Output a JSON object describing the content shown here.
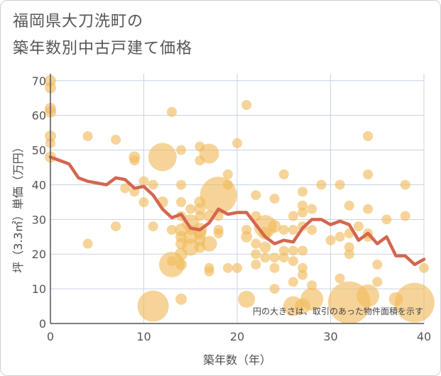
{
  "chart_data": {
    "type": "scatter",
    "title_line1": "福岡県大刀洗町の",
    "title_line2": "築年数別中古戸建て価格",
    "xlabel": "築年数（年）",
    "ylabel": "坪（3.3㎡）単価（万円）",
    "xlim": [
      0,
      40
    ],
    "ylim": [
      0,
      72
    ],
    "xticks": [
      0,
      10,
      20,
      30,
      40
    ],
    "yticks": [
      0,
      10,
      20,
      30,
      40,
      50,
      60,
      70
    ],
    "note": "円の大きさは、取引のあった物件面積を示す",
    "colors": {
      "bubble": "#f0b95a",
      "line": "#d4664f",
      "grid": "#c9d3e3",
      "axis": "#555555"
    },
    "points": [
      [
        0,
        70,
        8
      ],
      [
        0,
        68,
        8
      ],
      [
        0,
        62,
        8
      ],
      [
        0,
        61,
        8
      ],
      [
        0,
        54,
        8
      ],
      [
        0,
        52,
        7
      ],
      [
        0,
        48,
        8
      ],
      [
        4,
        54,
        7
      ],
      [
        4,
        23,
        7
      ],
      [
        7,
        53,
        7
      ],
      [
        7,
        28,
        7
      ],
      [
        8,
        39,
        7
      ],
      [
        9,
        48,
        8
      ],
      [
        9,
        47,
        7
      ],
      [
        9,
        38,
        7
      ],
      [
        10,
        41,
        7
      ],
      [
        10,
        35,
        7
      ],
      [
        11,
        40,
        7
      ],
      [
        11,
        28,
        7
      ],
      [
        11,
        5,
        22
      ],
      [
        12,
        48,
        20
      ],
      [
        12,
        35,
        8
      ],
      [
        13,
        61,
        7
      ],
      [
        13,
        27,
        7
      ],
      [
        13,
        17,
        18
      ],
      [
        13,
        18,
        7
      ],
      [
        14,
        50,
        7
      ],
      [
        14,
        40,
        7
      ],
      [
        14,
        35,
        7
      ],
      [
        14,
        31,
        7
      ],
      [
        14,
        27,
        9
      ],
      [
        14,
        25,
        8
      ],
      [
        14,
        23,
        8
      ],
      [
        14,
        20,
        9
      ],
      [
        14,
        17,
        8
      ],
      [
        14,
        7,
        8
      ],
      [
        15,
        33,
        7
      ],
      [
        15,
        29,
        12
      ],
      [
        15,
        27,
        7
      ],
      [
        15,
        25,
        10
      ],
      [
        15,
        22,
        12
      ],
      [
        16,
        51,
        7
      ],
      [
        16,
        47,
        7
      ],
      [
        16,
        35,
        8
      ],
      [
        16,
        33,
        8
      ],
      [
        16,
        31,
        7
      ],
      [
        16,
        27,
        10
      ],
      [
        16,
        26,
        9
      ],
      [
        16,
        24,
        8
      ],
      [
        16,
        22,
        8
      ],
      [
        17,
        49,
        14
      ],
      [
        17,
        31,
        8
      ],
      [
        17,
        23,
        11
      ],
      [
        17,
        16,
        7
      ],
      [
        17,
        15,
        7
      ],
      [
        18,
        37,
        26
      ],
      [
        18,
        31,
        7
      ],
      [
        18,
        27,
        7
      ],
      [
        18,
        26,
        7
      ],
      [
        19,
        43,
        7
      ],
      [
        19,
        40,
        7
      ],
      [
        19,
        16,
        7
      ],
      [
        20,
        52,
        7
      ],
      [
        20,
        16,
        7
      ],
      [
        21,
        63,
        7
      ],
      [
        21,
        27,
        7
      ],
      [
        21,
        25,
        8
      ],
      [
        21,
        7,
        12
      ],
      [
        22,
        37,
        7
      ],
      [
        22,
        31,
        7
      ],
      [
        22,
        23,
        7
      ],
      [
        22,
        20,
        7
      ],
      [
        22,
        17,
        7
      ],
      [
        23,
        28,
        16
      ],
      [
        23,
        26,
        9
      ],
      [
        23,
        22,
        8
      ],
      [
        23,
        19,
        7
      ],
      [
        24,
        36,
        7
      ],
      [
        24,
        28,
        9
      ],
      [
        24,
        19,
        7
      ],
      [
        24,
        16,
        7
      ],
      [
        24,
        10,
        7
      ],
      [
        25,
        43,
        7
      ],
      [
        25,
        27,
        7
      ],
      [
        25,
        21,
        7
      ],
      [
        25,
        19,
        7
      ],
      [
        26,
        31,
        7
      ],
      [
        26,
        27,
        7
      ],
      [
        26,
        21,
        7
      ],
      [
        26,
        18,
        7
      ],
      [
        26,
        12,
        7
      ],
      [
        26,
        5,
        14
      ],
      [
        27,
        38,
        7
      ],
      [
        27,
        34,
        7
      ],
      [
        27,
        32,
        7
      ],
      [
        27,
        28,
        7
      ],
      [
        27,
        21,
        7
      ],
      [
        27,
        16,
        7
      ],
      [
        27,
        14,
        7
      ],
      [
        27,
        5,
        11
      ],
      [
        28,
        33,
        7
      ],
      [
        28,
        27,
        7
      ],
      [
        28,
        11,
        7
      ],
      [
        28,
        7,
        16
      ],
      [
        29,
        40,
        7
      ],
      [
        30,
        24,
        7
      ],
      [
        31,
        40,
        7
      ],
      [
        31,
        13,
        7
      ],
      [
        31,
        25,
        7
      ],
      [
        32,
        34,
        7
      ],
      [
        32,
        26,
        7
      ],
      [
        32,
        22,
        7
      ],
      [
        32,
        20,
        7
      ],
      [
        32,
        6,
        30
      ],
      [
        33,
        28,
        7
      ],
      [
        34,
        54,
        7
      ],
      [
        34,
        43,
        7
      ],
      [
        34,
        33,
        7
      ],
      [
        34,
        26,
        7
      ],
      [
        34,
        25,
        7
      ],
      [
        34,
        8,
        16
      ],
      [
        35,
        17,
        7
      ],
      [
        35,
        12,
        7
      ],
      [
        36,
        30,
        7
      ],
      [
        37,
        7,
        10
      ],
      [
        38,
        40,
        7
      ],
      [
        38,
        31,
        7
      ],
      [
        39,
        6,
        28
      ],
      [
        40,
        16,
        7
      ]
    ],
    "line": {
      "x": [
        0,
        1,
        2,
        3,
        4,
        5,
        6,
        7,
        8,
        9,
        10,
        11,
        12,
        13,
        14,
        15,
        16,
        17,
        18,
        19,
        20,
        21,
        22,
        23,
        24,
        25,
        26,
        27,
        28,
        29,
        30,
        31,
        32,
        33,
        34,
        35,
        36,
        37,
        38,
        39,
        40
      ],
      "y": [
        48,
        47,
        46,
        42,
        41,
        40.5,
        40,
        42,
        41.5,
        39,
        39.5,
        37,
        33,
        30.5,
        31.5,
        27.5,
        27,
        29,
        33,
        31.5,
        32,
        32,
        28.5,
        25,
        23,
        24,
        23.5,
        27.5,
        30,
        30,
        28.5,
        29.5,
        28.5,
        24,
        26,
        23,
        25,
        19.5,
        19.5,
        17,
        18.5
      ]
    }
  }
}
